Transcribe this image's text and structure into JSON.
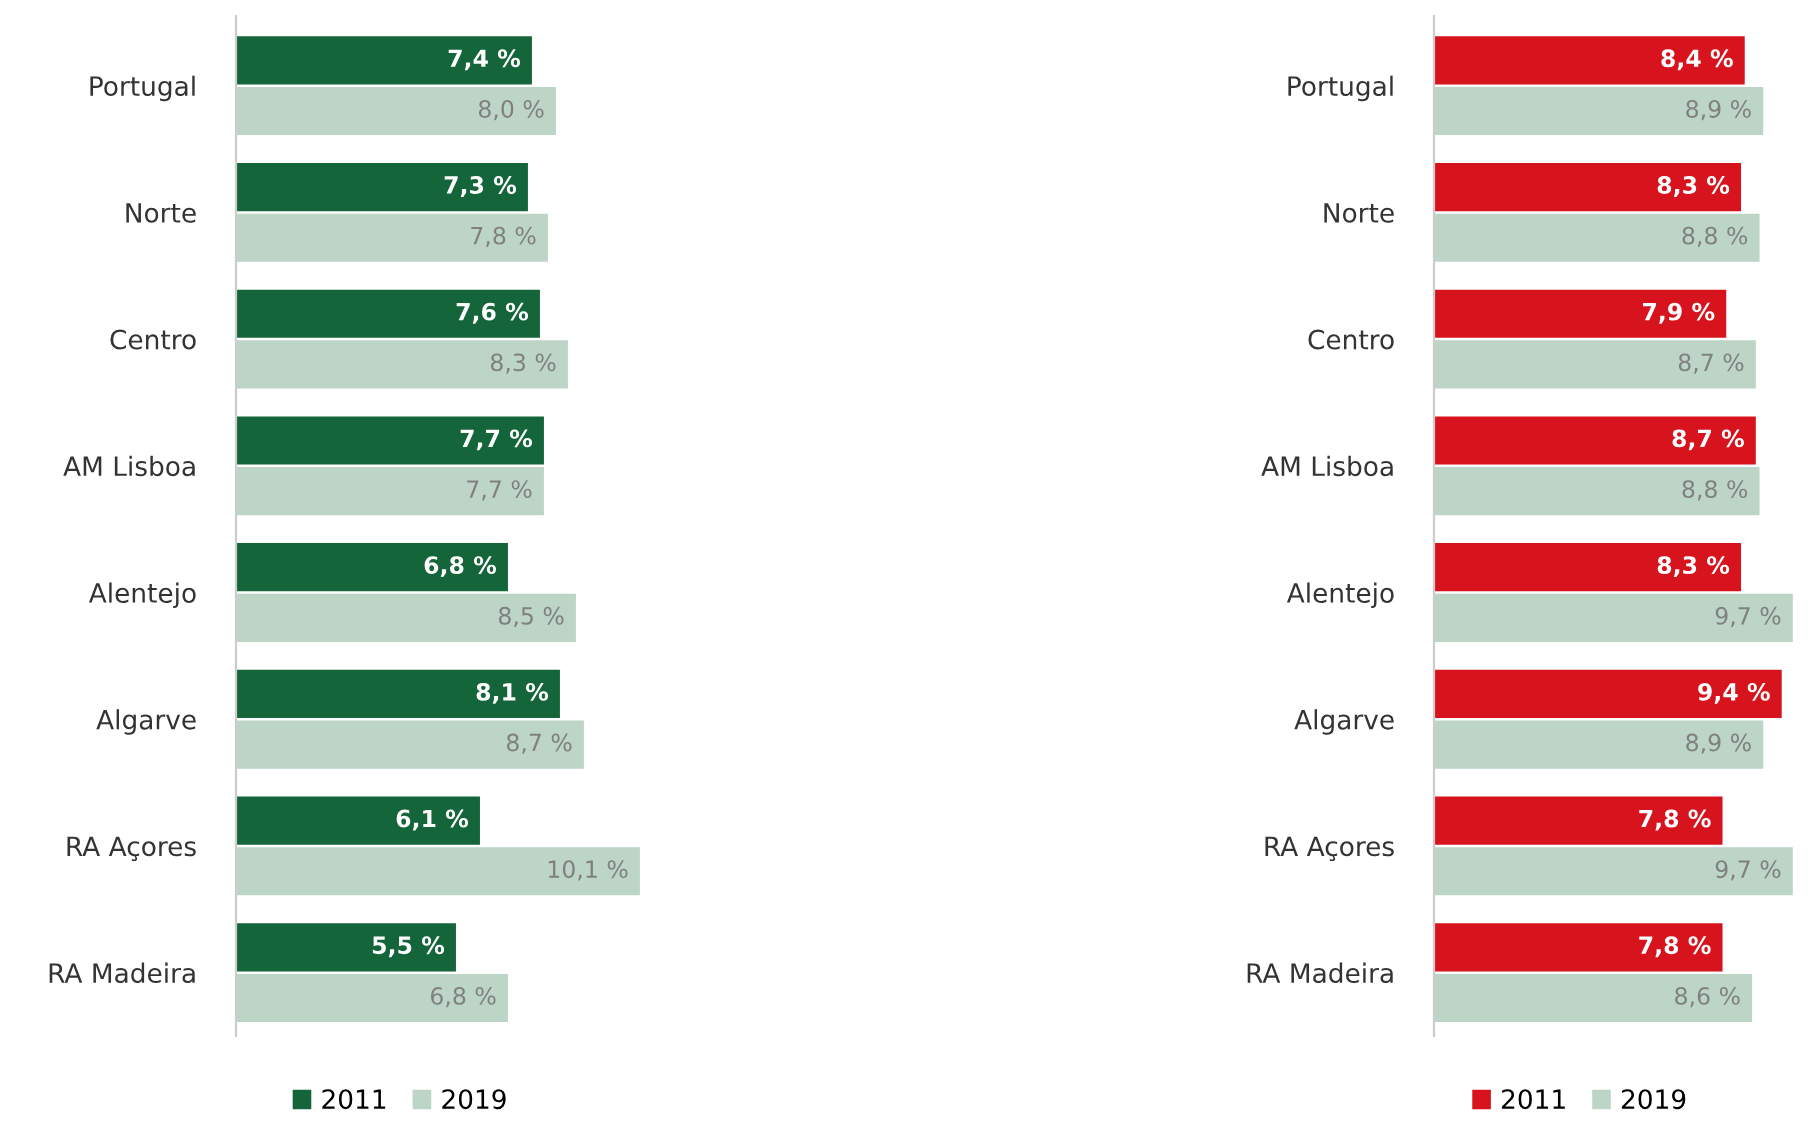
{
  "chart_data": [
    {
      "type": "bar",
      "orientation": "horizontal",
      "categories": [
        "Portugal",
        "Norte",
        "Centro",
        "AM Lisboa",
        "Alentejo",
        "Algarve",
        "RA Açores",
        "RA Madeira"
      ],
      "legend": "bottom",
      "grid": false,
      "series": [
        {
          "name": "2011",
          "color": "#14653a",
          "values": [
            7.4,
            7.3,
            7.6,
            7.7,
            6.8,
            8.1,
            6.1,
            5.5
          ],
          "value_labels": [
            "7,4 %",
            "7,3 %",
            "7,6 %",
            "7,7 %",
            "6,8 %",
            "8,1 %",
            "6,1 %",
            "5,5 %"
          ]
        },
        {
          "name": "2019",
          "color": "#bcd5c6",
          "values": [
            8.0,
            7.8,
            8.3,
            7.7,
            8.5,
            8.7,
            10.1,
            6.8
          ],
          "value_labels": [
            "8,0 %",
            "7,8 %",
            "8,3 %",
            "7,7 %",
            "8,5 %",
            "8,7 %",
            "10,1 %",
            "6,8 %"
          ]
        }
      ]
    },
    {
      "type": "bar",
      "orientation": "horizontal",
      "categories": [
        "Portugal",
        "Norte",
        "Centro",
        "AM Lisboa",
        "Alentejo",
        "Algarve",
        "RA Açores",
        "RA Madeira"
      ],
      "legend": "bottom",
      "grid": false,
      "series": [
        {
          "name": "2011",
          "color": "#d7141e",
          "values": [
            8.4,
            8.3,
            7.9,
            8.7,
            8.3,
            9.4,
            7.8,
            7.8
          ],
          "value_labels": [
            "8,4 %",
            "8,3 %",
            "7,9 %",
            "8,7 %",
            "8,3 %",
            "9,4 %",
            "7,8 %",
            "7,8 %"
          ]
        },
        {
          "name": "2019",
          "color": "#bcd5c6",
          "values": [
            8.9,
            8.8,
            8.7,
            8.8,
            9.7,
            8.9,
            9.7,
            8.6
          ],
          "value_labels": [
            "8,9 %",
            "8,8 %",
            "8,7 %",
            "8,8 %",
            "9,7 %",
            "8,9 %",
            "9,7 %",
            "8,6 %"
          ]
        }
      ]
    }
  ]
}
